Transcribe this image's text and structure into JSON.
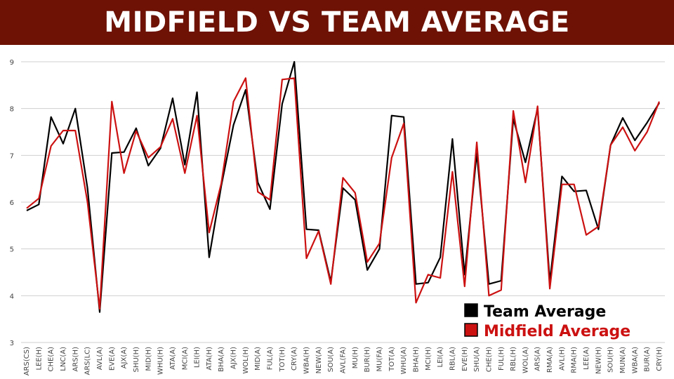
{
  "header": {
    "title": "MIDFIELD VS TEAM AVERAGE",
    "background": "#6e1205"
  },
  "chart_data": {
    "type": "line",
    "title": "MIDFIELD VS TEAM AVERAGE",
    "xlabel": "",
    "ylabel": "",
    "ylim": [
      3,
      9
    ],
    "yticks": [
      3,
      4,
      5,
      6,
      7,
      8,
      9
    ],
    "grid": true,
    "legend_position": "bottom-right",
    "x": [
      "ARS(CS)",
      "LEE(H)",
      "CHE(A)",
      "LNC(A)",
      "ARS(H)",
      "ARS(LC)",
      "AVL(A)",
      "EVE(A)",
      "AJX(A)",
      "SHU(H)",
      "MID(H)",
      "WHU(H)",
      "ATA(A)",
      "MCI(A)",
      "LEI(H)",
      "ATA(H)",
      "BHA(A)",
      "AJX(H)",
      "WOL(H)",
      "MID(A)",
      "FUL(A)",
      "TOT(H)",
      "CRY(A)",
      "WBA(H)",
      "NEW(A)",
      "SOU(A)",
      "AVL(FA)",
      "MU(H)",
      "BUR(H)",
      "MU(FA)",
      "TOT(A)",
      "WHU(A)",
      "BHA(H)",
      "MCI(H)",
      "LEI(A)",
      "RBL(A)",
      "EVE(H)",
      "SHU(A)",
      "CHE(H)",
      "FUL(H)",
      "RBL(H)",
      "WOL(A)",
      "ARS(A)",
      "RMA(A)",
      "AVL(H)",
      "RMA(H)",
      "LEE(A)",
      "NEW(H)",
      "SOU(H)",
      "MUN(A)",
      "WBA(A)",
      "BUR(A)",
      "CRY(H)"
    ],
    "series": [
      {
        "name": "Team Average",
        "color": "#000000",
        "values": [
          5.82,
          5.95,
          7.82,
          7.25,
          8.0,
          6.3,
          3.65,
          7.05,
          7.07,
          7.58,
          6.78,
          7.15,
          8.22,
          6.8,
          8.35,
          4.82,
          6.35,
          7.65,
          8.4,
          6.42,
          5.85,
          8.1,
          9.0,
          5.42,
          5.4,
          4.3,
          6.3,
          6.05,
          4.55,
          5.0,
          7.85,
          7.82,
          4.25,
          4.28,
          4.82,
          7.35,
          4.45,
          7.05,
          4.25,
          4.32,
          7.78,
          6.85,
          8.0,
          4.3,
          6.55,
          6.23,
          6.25,
          5.42,
          7.22,
          7.8,
          7.32,
          7.7,
          8.12
        ]
      },
      {
        "name": "Midfield Average",
        "color": "#cc1111",
        "values": [
          5.87,
          6.08,
          7.2,
          7.53,
          7.53,
          6.0,
          3.72,
          8.15,
          6.62,
          7.52,
          6.95,
          7.18,
          7.78,
          6.62,
          7.85,
          5.35,
          6.4,
          8.15,
          8.65,
          6.22,
          6.05,
          8.62,
          8.65,
          4.8,
          5.38,
          4.25,
          6.52,
          6.2,
          4.72,
          5.12,
          6.95,
          7.68,
          3.85,
          4.45,
          4.38,
          6.65,
          4.2,
          7.28,
          4.0,
          4.12,
          7.95,
          6.42,
          8.05,
          4.15,
          6.38,
          6.38,
          5.3,
          5.48,
          7.22,
          7.6,
          7.1,
          7.5,
          8.15
        ]
      }
    ]
  }
}
